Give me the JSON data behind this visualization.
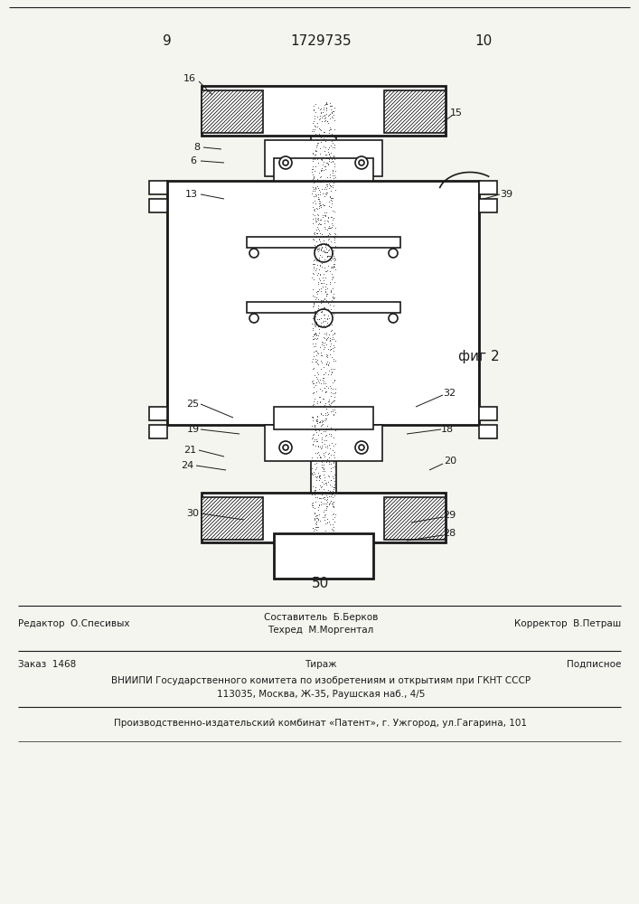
{
  "page_number_left": "9",
  "page_number_right": "10",
  "patent_number": "1729735",
  "figure_label": "фиг 2",
  "number_bottom": "50",
  "footer_line1_left": "Редактор  О.Спесивых",
  "footer_line1_center": "Составитель  Б.Берков\nТехред  М.Моргентал",
  "footer_line1_right": "Корректор  В.Петраш",
  "footer_line2_left": "Заказ  1468",
  "footer_line2_center": "Тираж",
  "footer_line2_right": "Подписное",
  "footer_line3": "ВНИИПИ Государственного комитета по изобретениям и открытиям при ГКНТ СССР",
  "footer_line4": "113035, Москва, Ж-35, Раушская наб., 4/5",
  "footer_line5": "Производственно-издательский комбинат «Патент», г. Ужгород, ул.Гагарина, 101",
  "bg_color": "#f5f5f0",
  "line_color": "#1a1a1a"
}
